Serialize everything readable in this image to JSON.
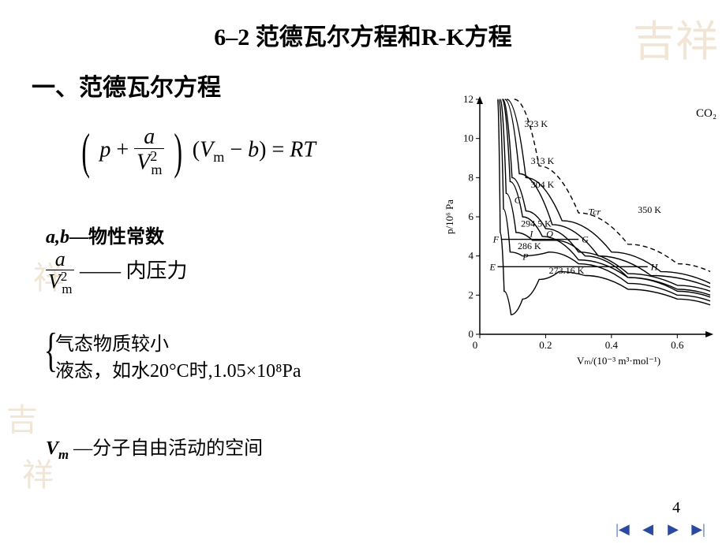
{
  "slide": {
    "title": "6–2  范德瓦尔方程和R-K方程",
    "section_heading": "一、范德瓦尔方程",
    "page_number": "4"
  },
  "equation": {
    "p": "p",
    "plus": "+",
    "a": "a",
    "Vm2": "V",
    "Vm2_sub": "m",
    "Vm2_sup": "2",
    "Vm": "V",
    "Vm_sub": "m",
    "minus": "−",
    "b": "b",
    "eq": "=",
    "RT": "RT"
  },
  "text": {
    "ab_line_prefix": "a,b",
    "ab_line_dash": "—",
    "ab_line_cn": "物性常数",
    "frac_a": "a",
    "frac_V": "V",
    "frac_sub": "m",
    "frac_sup": "2",
    "frac_dash": "——",
    "frac_label": " 内压力",
    "brace_row1": "气态物质较小",
    "brace_row2": "液态，如水20°C时,1.05×10⁸Pa",
    "vm_symbol": "V",
    "vm_sub": "m",
    "vm_dash": " —",
    "vm_label": "分子自由活动的空间"
  },
  "chart": {
    "substance": "CO₂",
    "ylabel": "p/10⁶ Pa",
    "xlabel": "Vₘ/(10⁻³ m³·mol⁻¹)",
    "yticks": [
      0,
      2,
      4,
      6,
      8,
      10,
      12
    ],
    "xticks": [
      0,
      0.2,
      0.4,
      0.6
    ],
    "xlim": [
      0,
      0.7
    ],
    "ylim": [
      0,
      12
    ],
    "isotherms": [
      {
        "label": "350 K",
        "style": "dashed",
        "points": [
          [
            0.105,
            12
          ],
          [
            0.18,
            8.6
          ],
          [
            0.3,
            6.2
          ],
          [
            0.45,
            4.6
          ],
          [
            0.6,
            3.6
          ],
          [
            0.7,
            3.2
          ]
        ]
      },
      {
        "label": "323 K",
        "style": "solid",
        "points": [
          [
            0.082,
            12
          ],
          [
            0.14,
            8.0
          ],
          [
            0.25,
            5.8
          ],
          [
            0.4,
            4.2
          ],
          [
            0.55,
            3.2
          ],
          [
            0.7,
            2.6
          ]
        ]
      },
      {
        "label": "313 K",
        "style": "solid",
        "points": [
          [
            0.076,
            12
          ],
          [
            0.12,
            8.2
          ],
          [
            0.22,
            5.6
          ],
          [
            0.36,
            4.0
          ],
          [
            0.52,
            3.0
          ],
          [
            0.7,
            2.4
          ]
        ]
      },
      {
        "label": "Tcr",
        "style": "solid",
        "note": "critical 304 K",
        "points": [
          [
            0.07,
            12
          ],
          [
            0.098,
            8.0
          ],
          [
            0.14,
            6.3
          ],
          [
            0.2,
            5.4
          ],
          [
            0.3,
            4.2
          ],
          [
            0.45,
            3.1
          ],
          [
            0.6,
            2.5
          ],
          [
            0.7,
            2.2
          ]
        ]
      },
      {
        "label": "304 K",
        "style": "solid",
        "points": [
          [
            0.068,
            12
          ],
          [
            0.092,
            7.8
          ],
          [
            0.13,
            6.0
          ],
          [
            0.19,
            5.0
          ],
          [
            0.3,
            3.8
          ],
          [
            0.45,
            2.9
          ],
          [
            0.6,
            2.3
          ],
          [
            0.7,
            2.0
          ]
        ]
      },
      {
        "label": "294.5 K",
        "style": "solid",
        "points": [
          [
            0.062,
            12
          ],
          [
            0.08,
            7.2
          ],
          [
            0.11,
            5.2
          ],
          [
            0.16,
            4.8
          ],
          [
            0.23,
            4.8
          ],
          [
            0.32,
            4.0
          ],
          [
            0.45,
            2.9
          ],
          [
            0.6,
            2.2
          ],
          [
            0.7,
            1.9
          ]
        ]
      },
      {
        "label": "286 K",
        "style": "solid",
        "points": [
          [
            0.058,
            12
          ],
          [
            0.072,
            6.4
          ],
          [
            0.092,
            4.2
          ],
          [
            0.13,
            4.0
          ],
          [
            0.21,
            4.2
          ],
          [
            0.3,
            3.6
          ],
          [
            0.45,
            2.6
          ],
          [
            0.6,
            2.0
          ],
          [
            0.7,
            1.7
          ]
        ]
      },
      {
        "label": "273.16 K",
        "style": "solid",
        "points": [
          [
            0.054,
            12
          ],
          [
            0.062,
            5.2
          ],
          [
            0.074,
            2.2
          ],
          [
            0.095,
            1.0
          ],
          [
            0.13,
            1.8
          ],
          [
            0.18,
            2.8
          ],
          [
            0.24,
            3.2
          ],
          [
            0.32,
            3.0
          ],
          [
            0.45,
            2.3
          ],
          [
            0.6,
            1.8
          ],
          [
            0.7,
            1.5
          ]
        ]
      }
    ],
    "tie_lines": [
      {
        "label_left": "F",
        "label_right": "G",
        "y": 4.85,
        "x1": 0.064,
        "x2": 0.3,
        "mid_label": "Q",
        "mid2_label": "I"
      },
      {
        "label_left": "E",
        "label_right": "H",
        "y": 3.45,
        "x1": 0.054,
        "x2": 0.51
      }
    ],
    "point_labels": [
      "C",
      "P"
    ],
    "colors": {
      "axis": "#000000",
      "curve": "#000000",
      "background": "#ffffff"
    },
    "line_width": 1.4,
    "font_size_axis": 13,
    "font_size_labels": 12
  },
  "nav": {
    "first": "|◀",
    "prev": "◀",
    "next": "▶",
    "last": "▶|"
  },
  "style": {
    "title_color": "#000000",
    "title_fontsize": 30,
    "body_fontsize": 24,
    "background": "#ffffff",
    "watermark_color": "#d9b88a"
  }
}
